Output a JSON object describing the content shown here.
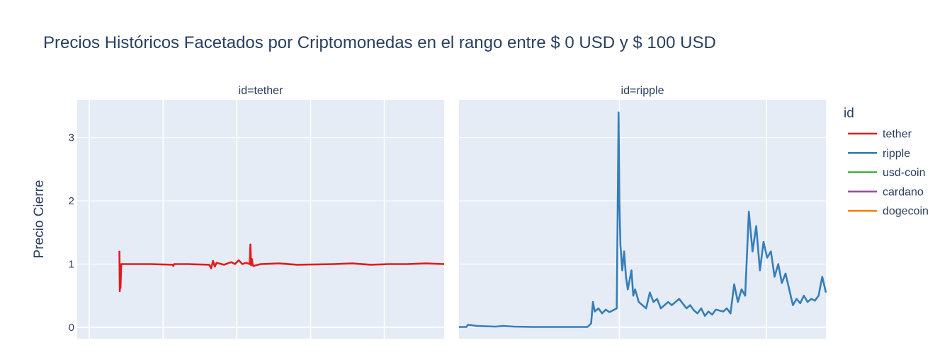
{
  "chart_data": {
    "type": "line",
    "title": "Precios Históricos Facetados por Criptomonedas en el rango entre $ 0 USD y $ 100 USD",
    "ylabel": "Precio Cierre",
    "xlabel": "",
    "ylim": [
      -0.18,
      3.6
    ],
    "yticks": [
      0,
      1,
      2,
      3
    ],
    "grid": true,
    "legend": {
      "title": "id",
      "placement": "right",
      "entries": [
        {
          "name": "tether",
          "color": "#e41a1c"
        },
        {
          "name": "ripple",
          "color": "#377eb8"
        },
        {
          "name": "usd-coin",
          "color": "#4daf4a"
        },
        {
          "name": "cardano",
          "color": "#984ea3"
        },
        {
          "name": "dogecoin",
          "color": "#ff7f00"
        }
      ]
    },
    "facets": [
      {
        "label": "id=tether",
        "series": "tether",
        "color": "#e41a1c",
        "x": [
          0.115,
          0.116,
          0.117,
          0.118,
          0.12,
          0.2,
          0.26,
          0.262,
          0.264,
          0.3,
          0.36,
          0.365,
          0.37,
          0.375,
          0.38,
          0.4,
          0.42,
          0.43,
          0.44,
          0.45,
          0.46,
          0.47,
          0.472,
          0.474,
          0.476,
          0.478,
          0.48,
          0.5,
          0.55,
          0.6,
          0.7,
          0.75,
          0.8,
          0.85,
          0.9,
          0.95,
          1.0
        ],
        "values": [
          1.21,
          0.57,
          1.0,
          0.62,
          1.0,
          1.0,
          0.99,
          0.97,
          1.0,
          1.0,
          0.99,
          0.93,
          1.05,
          0.96,
          1.02,
          0.99,
          1.03,
          1.0,
          1.06,
          1.0,
          1.02,
          1.0,
          1.31,
          0.98,
          1.08,
          1.0,
          0.97,
          1.0,
          1.01,
          0.99,
          1.0,
          1.01,
          0.99,
          1.0,
          1.0,
          1.01,
          1.0
        ]
      },
      {
        "label": "id=ripple",
        "series": "ripple",
        "color": "#377eb8",
        "x": [
          0.0,
          0.02,
          0.025,
          0.05,
          0.1,
          0.12,
          0.15,
          0.2,
          0.25,
          0.3,
          0.35,
          0.36,
          0.365,
          0.37,
          0.38,
          0.39,
          0.4,
          0.41,
          0.42,
          0.43,
          0.435,
          0.437,
          0.44,
          0.445,
          0.45,
          0.455,
          0.46,
          0.47,
          0.475,
          0.48,
          0.49,
          0.5,
          0.51,
          0.52,
          0.53,
          0.54,
          0.55,
          0.56,
          0.57,
          0.58,
          0.6,
          0.62,
          0.63,
          0.64,
          0.65,
          0.66,
          0.67,
          0.68,
          0.69,
          0.7,
          0.72,
          0.73,
          0.74,
          0.75,
          0.76,
          0.77,
          0.78,
          0.79,
          0.8,
          0.81,
          0.82,
          0.83,
          0.84,
          0.85,
          0.86,
          0.87,
          0.88,
          0.89,
          0.9,
          0.91,
          0.92,
          0.93,
          0.94,
          0.95,
          0.96,
          0.97,
          0.98,
          0.99,
          1.0
        ],
        "values": [
          0.005,
          0.005,
          0.04,
          0.02,
          0.01,
          0.02,
          0.01,
          0.005,
          0.005,
          0.005,
          0.005,
          0.06,
          0.4,
          0.25,
          0.3,
          0.22,
          0.28,
          0.24,
          0.27,
          0.3,
          3.4,
          2.0,
          1.3,
          0.9,
          1.2,
          0.8,
          0.6,
          0.9,
          0.5,
          0.6,
          0.4,
          0.35,
          0.3,
          0.55,
          0.4,
          0.45,
          0.3,
          0.35,
          0.4,
          0.35,
          0.45,
          0.3,
          0.35,
          0.27,
          0.22,
          0.3,
          0.18,
          0.25,
          0.2,
          0.28,
          0.25,
          0.3,
          0.22,
          0.68,
          0.4,
          0.6,
          0.5,
          1.83,
          1.2,
          1.6,
          0.9,
          1.35,
          1.1,
          1.2,
          0.8,
          1.0,
          0.7,
          0.85,
          0.6,
          0.35,
          0.45,
          0.38,
          0.5,
          0.4,
          0.45,
          0.42,
          0.5,
          0.8,
          0.55
        ]
      }
    ]
  }
}
